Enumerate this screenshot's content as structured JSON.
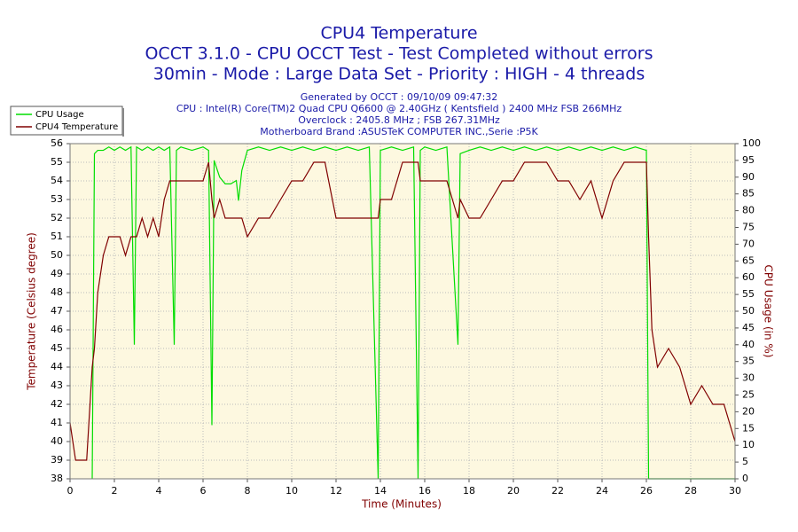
{
  "chart_data": {
    "type": "line",
    "title": "CPU4 Temperature",
    "title_lines": [
      "OCCT 3.1.0 - CPU OCCT Test - Test Completed without errors",
      "30min - Mode : Large Data Set - Priority : HIGH - 4 threads"
    ],
    "subtitle_lines": [
      "Generated by OCCT : 09/10/09 09:47:32",
      "CPU : Intel(R) Core(TM)2 Quad CPU Q6600 @ 2.40GHz ( Kentsfield ) 2400 MHz FSB 266MHz",
      "Overclock : 2405.8 MHz ; FSB 267.31MHz",
      "Motherboard Brand :ASUSTeK COMPUTER INC.,Serie :P5K"
    ],
    "x_label": "Time (Minutes)",
    "y_label": "Temperature (Celsius degree)",
    "y2_label": "CPU Usage (in %)",
    "x": [
      0,
      0.25,
      0.5,
      0.75,
      1.0,
      1.1,
      1.25,
      1.5,
      1.75,
      2.0,
      2.25,
      2.5,
      2.75,
      2.9,
      3.0,
      3.25,
      3.5,
      3.75,
      4.0,
      4.25,
      4.5,
      4.7,
      4.8,
      5.0,
      5.5,
      6.0,
      6.25,
      6.4,
      6.5,
      6.75,
      7.0,
      7.25,
      7.5,
      7.6,
      7.75,
      8.0,
      8.5,
      9.0,
      9.5,
      10.0,
      10.5,
      11.0,
      11.5,
      12.0,
      12.5,
      13.0,
      13.5,
      13.9,
      14.0,
      14.5,
      15.0,
      15.5,
      15.7,
      15.8,
      16.0,
      16.5,
      17.0,
      17.5,
      17.6,
      18.0,
      18.5,
      19.0,
      19.5,
      20.0,
      20.5,
      21.0,
      21.5,
      22.0,
      22.5,
      23.0,
      23.5,
      24.0,
      24.5,
      25.0,
      25.5,
      26.0,
      26.1,
      26.25,
      26.5,
      27.0,
      27.5,
      28.0,
      28.5,
      29.0,
      29.5,
      30.0
    ],
    "series": [
      {
        "name": "CPU Usage",
        "color": "#00dd00",
        "axis": "y2",
        "values": [
          null,
          null,
          null,
          null,
          0,
          97,
          98,
          98,
          99,
          98,
          99,
          98,
          99,
          40,
          99,
          98,
          99,
          98,
          99,
          98,
          99,
          40,
          98,
          99,
          98,
          99,
          98,
          16,
          95,
          90,
          88,
          88,
          89,
          83,
          92,
          98,
          99,
          98,
          99,
          98,
          99,
          98,
          99,
          98,
          99,
          98,
          99,
          0,
          98,
          99,
          98,
          99,
          0,
          98,
          99,
          98,
          99,
          40,
          97,
          98,
          99,
          98,
          99,
          98,
          99,
          98,
          99,
          98,
          99,
          98,
          99,
          98,
          99,
          98,
          99,
          98,
          0,
          0,
          0,
          0,
          0,
          0,
          0,
          0,
          0,
          0
        ]
      },
      {
        "name": "CPU4 Temperature",
        "color": "#800000",
        "values": [
          41,
          39,
          39,
          39,
          44,
          45,
          48,
          50,
          51,
          51,
          51,
          50,
          51,
          51,
          51,
          52,
          51,
          52,
          51,
          53,
          54,
          54,
          54,
          54,
          54,
          54,
          55,
          53,
          52,
          53,
          52,
          52,
          52,
          52,
          52,
          51,
          52,
          52,
          53,
          54,
          54,
          55,
          55,
          52,
          52,
          52,
          52,
          52,
          53,
          53,
          55,
          55,
          55,
          54,
          54,
          54,
          54,
          52,
          53,
          52,
          52,
          53,
          54,
          54,
          55,
          55,
          55,
          54,
          54,
          53,
          54,
          52,
          54,
          55,
          55,
          55,
          51,
          46,
          44,
          45,
          44,
          42,
          43,
          42,
          42,
          40
        ]
      }
    ],
    "xlim": [
      0,
      30
    ],
    "xticks": [
      0,
      2,
      4,
      6,
      8,
      10,
      12,
      14,
      16,
      18,
      20,
      22,
      24,
      26,
      28,
      30
    ],
    "ylim": [
      38,
      56
    ],
    "yticks": [
      38,
      39,
      40,
      41,
      42,
      43,
      44,
      45,
      46,
      47,
      48,
      49,
      50,
      51,
      52,
      53,
      54,
      55,
      56
    ],
    "y2lim": [
      0,
      100
    ],
    "y2ticks": [
      0,
      5,
      10,
      15,
      20,
      25,
      30,
      35,
      40,
      45,
      50,
      55,
      60,
      65,
      70,
      75,
      80,
      85,
      90,
      95,
      100
    ],
    "grid": true,
    "legend": "upper left"
  }
}
